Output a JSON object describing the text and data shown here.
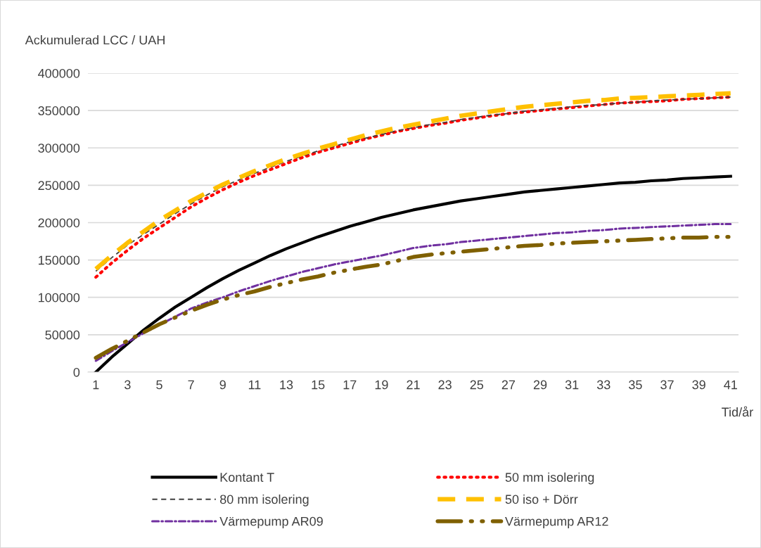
{
  "chart_data": {
    "type": "line",
    "ylabel": "Ackumulerad LCC / UAH",
    "xlabel": "Tid/år",
    "categories": [
      "1",
      null,
      "3",
      null,
      "5",
      null,
      "7",
      null,
      "9",
      null,
      "11",
      null,
      "13",
      null,
      "15",
      null,
      "17",
      null,
      "19",
      null,
      "21",
      null,
      "23",
      null,
      "25",
      null,
      "27",
      null,
      "29",
      null,
      "31",
      null,
      "33",
      null,
      "35",
      null,
      "37",
      null,
      "39",
      null,
      "41"
    ],
    "series": [
      {
        "name": "Kontant T",
        "color": "#000000",
        "line_style": "solid",
        "values": [
          0,
          20000,
          38000,
          56000,
          72000,
          87000,
          100000,
          113000,
          125000,
          136000,
          146000,
          156000,
          165000,
          173000,
          181000,
          188000,
          195000,
          201000,
          207000,
          212000,
          217000,
          221000,
          225000,
          229000,
          232000,
          235000,
          238000,
          241000,
          243000,
          245000,
          247000,
          249000,
          251000,
          253000,
          254000,
          256000,
          257000,
          259000,
          260000,
          261000,
          262000
        ]
      },
      {
        "name": "50 mm isolering",
        "color": "#ff0000",
        "line_style": "dotted",
        "values": [
          127000,
          146000,
          163000,
          179000,
          193000,
          207000,
          221000,
          233000,
          244000,
          254000,
          263000,
          271000,
          279000,
          287000,
          294000,
          300000,
          306000,
          312000,
          317000,
          322000,
          326000,
          330000,
          333000,
          337000,
          340000,
          343000,
          346000,
          348000,
          350000,
          352000,
          354000,
          356000,
          358000,
          360000,
          361000,
          362000,
          363000,
          365000,
          366000,
          367000,
          368000
        ]
      },
      {
        "name": "80 mm isolering",
        "color": "#404040",
        "line_style": "dashed",
        "values": [
          135000,
          153000,
          170000,
          184000,
          198000,
          212000,
          225000,
          237000,
          248000,
          257000,
          266000,
          274000,
          282000,
          289000,
          296000,
          302000,
          308000,
          313000,
          318000,
          323000,
          327000,
          331000,
          334000,
          338000,
          341000,
          344000,
          346000,
          349000,
          351000,
          353000,
          355000,
          357000,
          358000,
          360000,
          361000,
          363000,
          364000,
          365000,
          366000,
          367000,
          368000
        ]
      },
      {
        "name": "50 iso + Dörr",
        "color": "#ffc000",
        "line_style": "long dashed",
        "values": [
          138000,
          156000,
          173000,
          188000,
          203000,
          216000,
          229000,
          240000,
          251000,
          260000,
          269000,
          277000,
          285000,
          292000,
          299000,
          305000,
          311000,
          317000,
          322000,
          327000,
          331000,
          335000,
          339000,
          343000,
          346000,
          349000,
          352000,
          355000,
          357000,
          359000,
          361000,
          363000,
          364000,
          366000,
          367000,
          368000,
          369000,
          370000,
          371000,
          372000,
          373000
        ]
      },
      {
        "name": "Värmepump AR09",
        "color": "#7030a0",
        "line_style": "dashdot",
        "values": [
          15000,
          28000,
          40000,
          52000,
          63000,
          74000,
          85000,
          93000,
          100000,
          108000,
          115000,
          122000,
          128000,
          134000,
          139000,
          144000,
          148000,
          152000,
          156000,
          161000,
          166000,
          169000,
          171000,
          174000,
          176000,
          178000,
          180000,
          182000,
          184000,
          186000,
          187000,
          189000,
          190000,
          192000,
          193000,
          194000,
          195000,
          196000,
          197000,
          198000,
          198000
        ]
      },
      {
        "name": "Värmepump AR12",
        "color": "#7f6000",
        "line_style": "long dash dot dot",
        "values": [
          19000,
          31000,
          42000,
          53000,
          64000,
          73000,
          82000,
          90000,
          97000,
          103000,
          108000,
          114000,
          119000,
          124000,
          128000,
          133000,
          137000,
          141000,
          144000,
          149000,
          154000,
          157000,
          159000,
          161000,
          163000,
          165000,
          167000,
          169000,
          170000,
          172000,
          173000,
          174000,
          175000,
          176000,
          177000,
          178000,
          179000,
          180000,
          180000,
          181000,
          181000
        ]
      }
    ],
    "ylim": [
      0,
      400000
    ],
    "yticks": [
      0,
      50000,
      100000,
      150000,
      200000,
      250000,
      300000,
      350000,
      400000
    ],
    "grid": "y",
    "legend": "bottom",
    "marker": "none"
  }
}
